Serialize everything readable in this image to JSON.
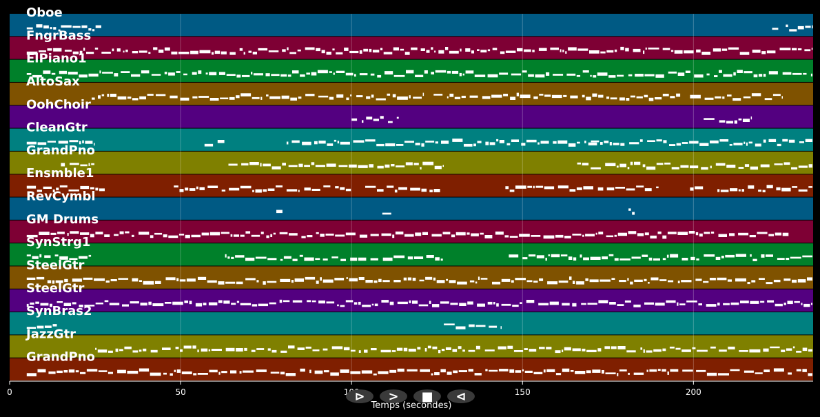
{
  "chart_data": {
    "type": "piano-roll",
    "xlabel": "Temps (secondes)",
    "xlim": [
      0,
      235
    ],
    "xticks": [
      0,
      50,
      100,
      150,
      200
    ],
    "grid": true,
    "note_color": "#ffffff",
    "tracks": [
      {
        "name": "Oboe",
        "color": "#005a84",
        "segments": [
          [
            5,
            15
          ],
          [
            15,
            27
          ],
          [
            223,
            225
          ],
          [
            227,
            235
          ]
        ]
      },
      {
        "name": "FngrBass",
        "color": "#7e0034",
        "segments": [
          [
            5,
            235
          ]
        ]
      },
      {
        "name": "ElPiano1",
        "color": "#00802a",
        "segments": [
          [
            5,
            235
          ]
        ]
      },
      {
        "name": "AltoSax",
        "color": "#7f5200",
        "segments": [
          [
            24,
            121
          ],
          [
            124,
            197
          ],
          [
            199,
            226
          ]
        ]
      },
      {
        "name": "OohChoir",
        "color": "#530080",
        "segments": [
          [
            100,
            114
          ],
          [
            203,
            217
          ]
        ]
      },
      {
        "name": "CleanGtr",
        "color": "#008080",
        "segments": [
          [
            5,
            25
          ],
          [
            57,
            63
          ],
          [
            81,
            172
          ],
          [
            170,
            235
          ]
        ]
      },
      {
        "name": "GrandPno",
        "color": "#7f8000",
        "segments": [
          [
            15,
            25
          ],
          [
            64,
            127
          ],
          [
            166,
            235
          ]
        ]
      },
      {
        "name": "Ensmble1",
        "color": "#7f1f00",
        "segments": [
          [
            5,
            28
          ],
          [
            48,
            80
          ],
          [
            81,
            100
          ],
          [
            104,
            127
          ],
          [
            145,
            190
          ],
          [
            199,
            203
          ],
          [
            207,
            235
          ]
        ]
      },
      {
        "name": "RevCymbl",
        "color": "#005a84",
        "segments": [
          [
            78,
            80
          ],
          [
            109,
            112
          ],
          [
            181,
            183
          ]
        ]
      },
      {
        "name": "GM Drums",
        "color": "#7e0034",
        "segments": [
          [
            5,
            228
          ]
        ]
      },
      {
        "name": "SynStrg1",
        "color": "#00802a",
        "segments": [
          [
            5,
            24
          ],
          [
            63,
            127
          ],
          [
            146,
            235
          ]
        ]
      },
      {
        "name": "SteelGtr",
        "color": "#7f5200",
        "segments": [
          [
            5,
            235
          ]
        ]
      },
      {
        "name": "SteelGtr",
        "color": "#530080",
        "segments": [
          [
            5,
            235
          ]
        ]
      },
      {
        "name": "SynBras2",
        "color": "#008080",
        "segments": [
          [
            5,
            14
          ],
          [
            127,
            144
          ]
        ]
      },
      {
        "name": "JazzGtr",
        "color": "#7f8000",
        "segments": [
          [
            25,
            235
          ]
        ]
      },
      {
        "name": "GrandPno",
        "color": "#7f1f00",
        "segments": [
          [
            5,
            235
          ]
        ]
      }
    ]
  },
  "controls": {
    "buttons": [
      {
        "icon": "play-icon",
        "glyph": "⊳"
      },
      {
        "icon": "forward-icon",
        "glyph": ">"
      },
      {
        "icon": "stop-icon",
        "glyph": "■"
      },
      {
        "icon": "rewind-icon",
        "glyph": "⊲"
      }
    ]
  }
}
